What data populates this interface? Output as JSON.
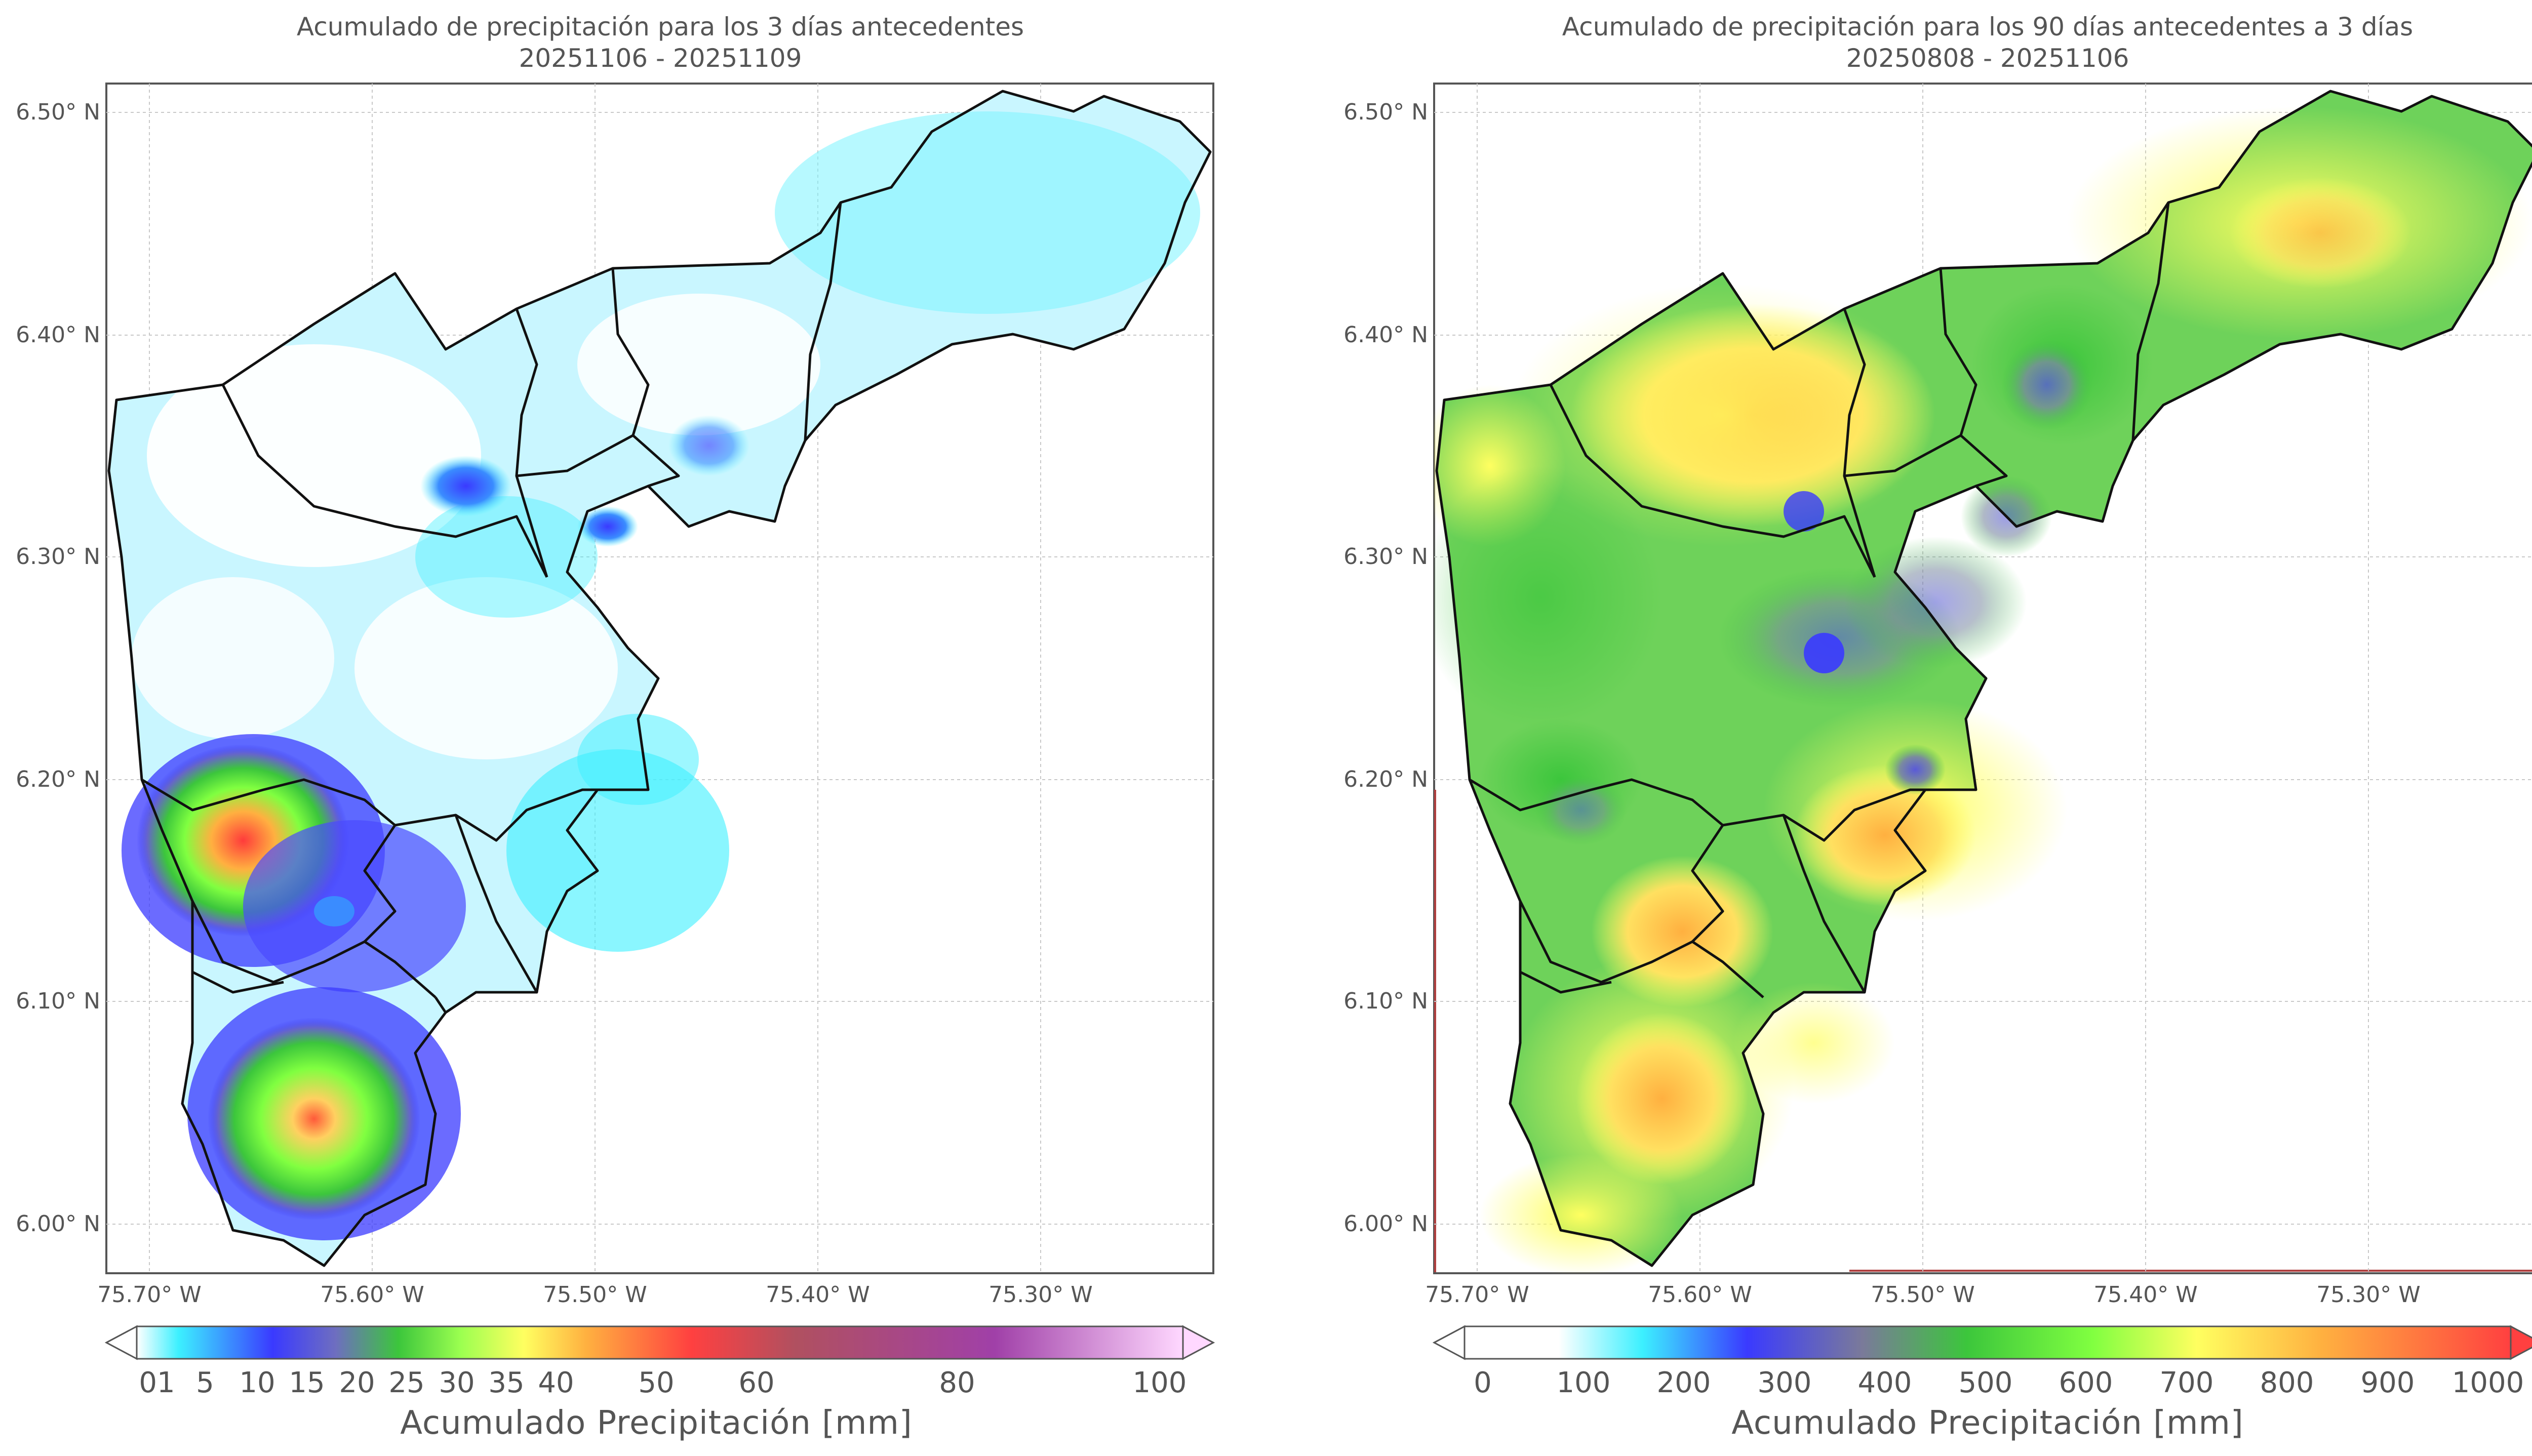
{
  "panels": [
    {
      "id": "left",
      "title_line1": "Acumulado de precipitación para los 3 días antecedentes",
      "title_line2": "20251106 - 20251109",
      "lat_labels": [
        "6.50° N",
        "6.40° N",
        "6.30° N",
        "6.20° N",
        "6.10° N",
        "6.00° N"
      ],
      "lon_labels": [
        "75.70° W",
        "75.60° W",
        "75.50° W",
        "75.40° W",
        "75.30° W"
      ],
      "colorbar": {
        "title": "Acumulado Precipitación [mm]",
        "ticks": [
          "01",
          "5",
          "10",
          "15",
          "20",
          "25",
          "30",
          "35",
          "40",
          "50",
          "60",
          "80",
          "100"
        ],
        "extend": "both",
        "colors": [
          "#ffffff",
          "#3cf0ff",
          "#3a3aff",
          "#6666c8",
          "#3cc63c",
          "#80ff40",
          "#ffff60",
          "#ffb040",
          "#ff4040",
          "#b0407a",
          "#b03cb0",
          "#ffd2ff"
        ]
      }
    },
    {
      "id": "right",
      "title_line1": "Acumulado de precipitación para los 90 días antecedentes a 3 días",
      "title_line2": "20250808 - 20251106",
      "lat_labels": [
        "6.50° N",
        "6.40° N",
        "6.30° N",
        "6.20° N",
        "6.10° N",
        "6.00° N"
      ],
      "lon_labels": [
        "75.70° W",
        "75.60° W",
        "75.50° W",
        "75.40° W",
        "75.30° W"
      ],
      "colorbar": {
        "title": "Acumulado Precipitación [mm]",
        "ticks": [
          "0",
          "100",
          "200",
          "300",
          "400",
          "500",
          "600",
          "700",
          "800",
          "900",
          "1000"
        ],
        "extend": "both",
        "colors": [
          "#ffffff",
          "#3cf0ff",
          "#3a3aff",
          "#7878a0",
          "#3cc63c",
          "#80ff40",
          "#ffff60",
          "#ffb040",
          "#ff4040"
        ]
      }
    }
  ]
}
